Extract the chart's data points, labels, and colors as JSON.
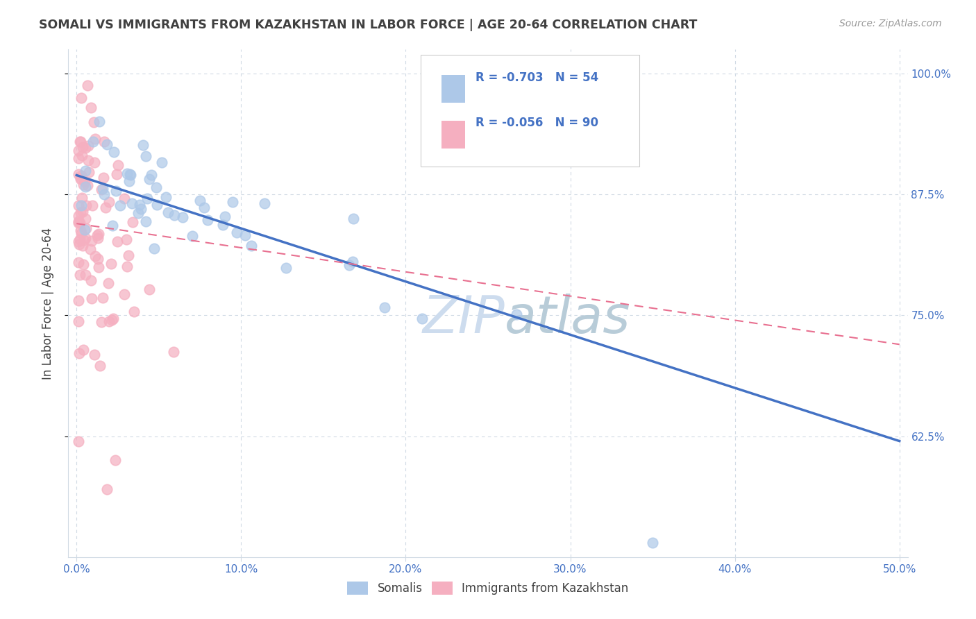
{
  "title": "SOMALI VS IMMIGRANTS FROM KAZAKHSTAN IN LABOR FORCE | AGE 20-64 CORRELATION CHART",
  "source": "Source: ZipAtlas.com",
  "ylabel_label": "In Labor Force | Age 20-64",
  "legend_labels": [
    "Somalis",
    "Immigrants from Kazakhstan"
  ],
  "somali_R": "-0.703",
  "somali_N": "54",
  "kazakh_R": "-0.056",
  "kazakh_N": "90",
  "scatter_color_somali": "#adc8e8",
  "scatter_color_kazakh": "#f5afc0",
  "line_color_somali": "#4472c4",
  "line_color_kazakh": "#e87090",
  "watermark_color": "#cddcee",
  "title_color": "#404040",
  "axis_color": "#4472c4",
  "grid_color": "#d0dae4",
  "background_color": "#ffffff",
  "somali_line_x0": 0.0,
  "somali_line_y0": 0.895,
  "somali_line_x1": 0.5,
  "somali_line_y1": 0.62,
  "kazakh_line_x0": 0.0,
  "kazakh_line_y0": 0.845,
  "kazakh_line_x1": 0.5,
  "kazakh_line_y1": 0.72,
  "xmin": 0.0,
  "xmax": 0.5,
  "ymin": 0.5,
  "ymax": 1.025,
  "xticks": [
    0.0,
    0.1,
    0.2,
    0.3,
    0.4,
    0.5
  ],
  "xtick_labels": [
    "0.0%",
    "10.0%",
    "20.0%",
    "30.0%",
    "40.0%",
    "50.0%"
  ],
  "yticks": [
    0.625,
    0.75,
    0.875,
    1.0
  ],
  "ytick_labels": [
    "62.5%",
    "75.0%",
    "87.5%",
    "100.0%"
  ],
  "hgrid_vals": [
    0.625,
    0.75,
    0.875,
    1.0
  ],
  "vgrid_vals": [
    0.0,
    0.1,
    0.2,
    0.3,
    0.4,
    0.5
  ]
}
